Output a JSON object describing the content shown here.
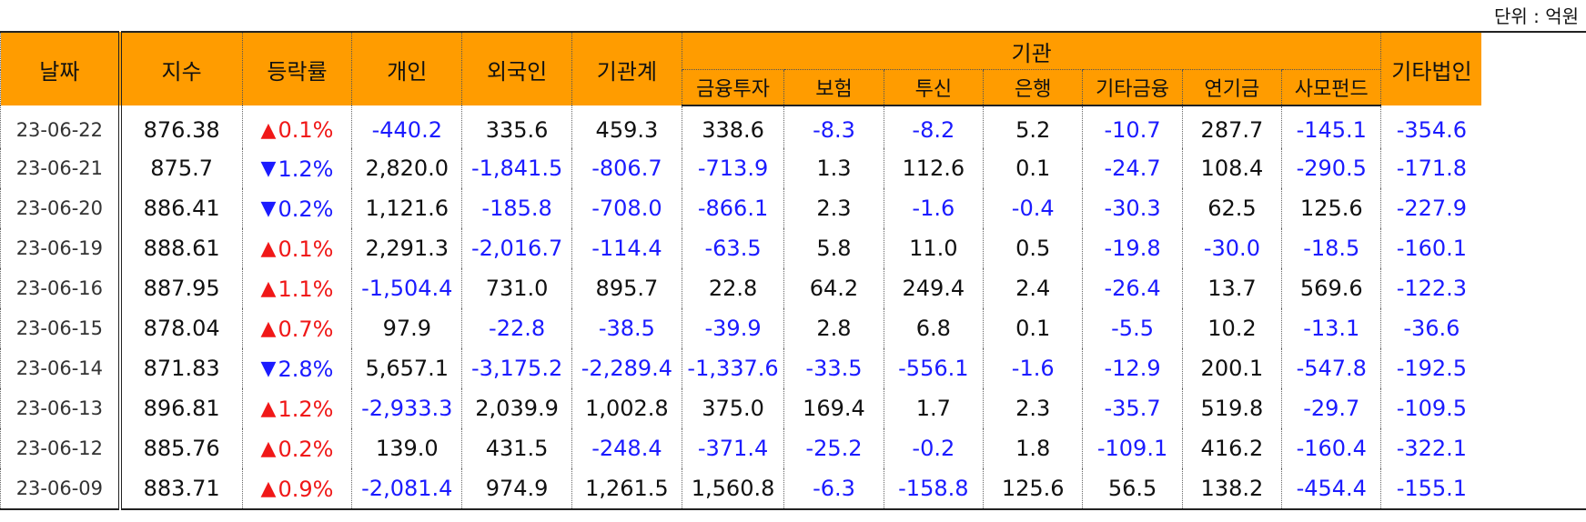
{
  "unit_label": "단위 : 억원",
  "headers": {
    "date": "날짜",
    "index": "지수",
    "change": "등락률",
    "individual": "개인",
    "foreign": "외국인",
    "inst_total": "기관계",
    "institution": "기관",
    "other_corp": "기타법인",
    "inst_sub": [
      "금융투자",
      "보험",
      "투신",
      "은행",
      "기타금융",
      "연기금",
      "사모펀드"
    ]
  },
  "rows": [
    {
      "date": "23-06-22",
      "index": "876.38",
      "dir": "up",
      "change": "0.1%",
      "individual": "-440.2",
      "foreign": "335.6",
      "inst_total": "459.3",
      "inst": [
        "338.6",
        "-8.3",
        "-8.2",
        "5.2",
        "-10.7",
        "287.7",
        "-145.1"
      ],
      "other_corp": "-354.6"
    },
    {
      "date": "23-06-21",
      "index": "875.7",
      "dir": "down",
      "change": "1.2%",
      "individual": "2,820.0",
      "foreign": "-1,841.5",
      "inst_total": "-806.7",
      "inst": [
        "-713.9",
        "1.3",
        "112.6",
        "0.1",
        "-24.7",
        "108.4",
        "-290.5"
      ],
      "other_corp": "-171.8"
    },
    {
      "date": "23-06-20",
      "index": "886.41",
      "dir": "down",
      "change": "0.2%",
      "individual": "1,121.6",
      "foreign": "-185.8",
      "inst_total": "-708.0",
      "inst": [
        "-866.1",
        "2.3",
        "-1.6",
        "-0.4",
        "-30.3",
        "62.5",
        "125.6"
      ],
      "other_corp": "-227.9"
    },
    {
      "date": "23-06-19",
      "index": "888.61",
      "dir": "up",
      "change": "0.1%",
      "individual": "2,291.3",
      "foreign": "-2,016.7",
      "inst_total": "-114.4",
      "inst": [
        "-63.5",
        "5.8",
        "11.0",
        "0.5",
        "-19.8",
        "-30.0",
        "-18.5"
      ],
      "other_corp": "-160.1"
    },
    {
      "date": "23-06-16",
      "index": "887.95",
      "dir": "up",
      "change": "1.1%",
      "individual": "-1,504.4",
      "foreign": "731.0",
      "inst_total": "895.7",
      "inst": [
        "22.8",
        "64.2",
        "249.4",
        "2.4",
        "-26.4",
        "13.7",
        "569.6"
      ],
      "other_corp": "-122.3"
    },
    {
      "date": "23-06-15",
      "index": "878.04",
      "dir": "up",
      "change": "0.7%",
      "individual": "97.9",
      "foreign": "-22.8",
      "inst_total": "-38.5",
      "inst": [
        "-39.9",
        "2.8",
        "6.8",
        "0.1",
        "-5.5",
        "10.2",
        "-13.1"
      ],
      "other_corp": "-36.6"
    },
    {
      "date": "23-06-14",
      "index": "871.83",
      "dir": "down",
      "change": "2.8%",
      "individual": "5,657.1",
      "foreign": "-3,175.2",
      "inst_total": "-2,289.4",
      "inst": [
        "-1,337.6",
        "-33.5",
        "-556.1",
        "-1.6",
        "-12.9",
        "200.1",
        "-547.8"
      ],
      "other_corp": "-192.5"
    },
    {
      "date": "23-06-13",
      "index": "896.81",
      "dir": "up",
      "change": "1.2%",
      "individual": "-2,933.3",
      "foreign": "2,039.9",
      "inst_total": "1,002.8",
      "inst": [
        "375.0",
        "169.4",
        "1.7",
        "2.3",
        "-35.7",
        "519.8",
        "-29.7"
      ],
      "other_corp": "-109.5"
    },
    {
      "date": "23-06-12",
      "index": "885.76",
      "dir": "up",
      "change": "0.2%",
      "individual": "139.0",
      "foreign": "431.5",
      "inst_total": "-248.4",
      "inst": [
        "-371.4",
        "-25.2",
        "-0.2",
        "1.8",
        "-109.1",
        "416.2",
        "-160.4"
      ],
      "other_corp": "-322.1"
    },
    {
      "date": "23-06-09",
      "index": "883.71",
      "dir": "up",
      "change": "0.9%",
      "individual": "-2,081.4",
      "foreign": "974.9",
      "inst_total": "1,261.5",
      "inst": [
        "1,560.8",
        "-6.3",
        "-158.8",
        "125.6",
        "56.5",
        "138.2",
        "-454.4"
      ],
      "other_corp": "-155.1"
    }
  ],
  "colors": {
    "header_bg": "#ff9c00",
    "negative": "#1b1bff",
    "up": "#f01818",
    "down": "#1b1bff"
  },
  "glyphs": {
    "up": "▲",
    "down": "▼"
  }
}
